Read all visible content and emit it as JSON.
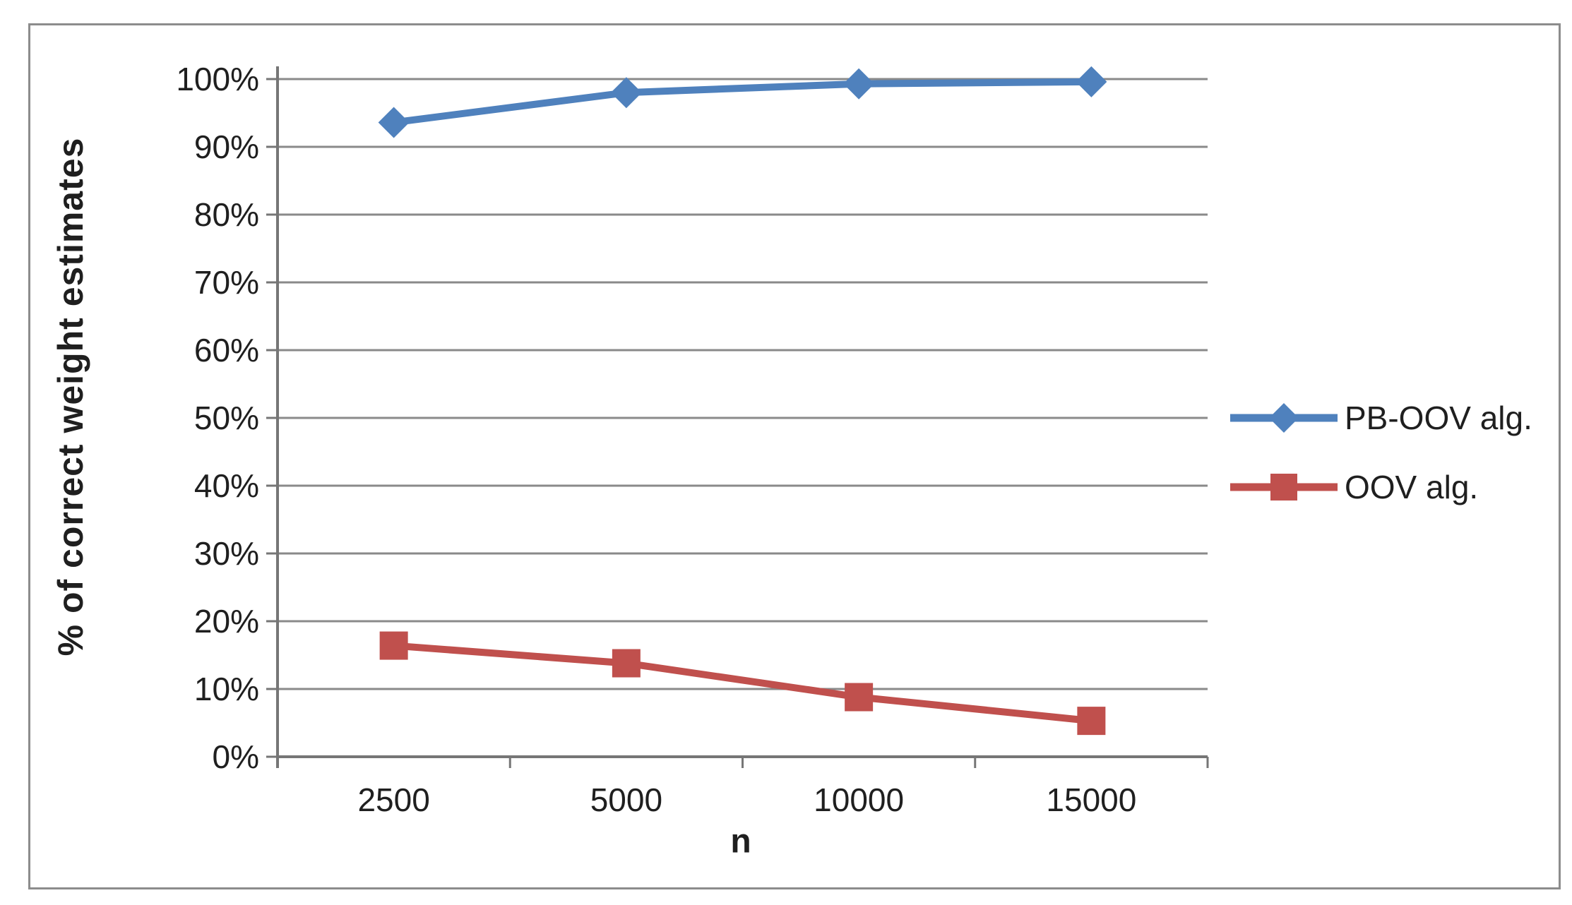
{
  "figure": {
    "background": "#ffffff",
    "border_color": "#8c8c8c"
  },
  "chart_data": {
    "type": "line",
    "title": "",
    "xlabel": "n",
    "ylabel": "% of correct weight estimates",
    "categories": [
      "2500",
      "5000",
      "10000",
      "15000"
    ],
    "series": [
      {
        "name": "PB-OOV alg.",
        "values": [
          93.6,
          98.0,
          99.3,
          99.6
        ],
        "color": "#4f81bd",
        "marker": "diamond"
      },
      {
        "name": "OOV alg.",
        "values": [
          16.4,
          13.8,
          8.8,
          5.3
        ],
        "color": "#c0504d",
        "marker": "square"
      }
    ],
    "y_ticks": [
      "0%",
      "10%",
      "20%",
      "30%",
      "40%",
      "50%",
      "60%",
      "70%",
      "80%",
      "90%",
      "100%"
    ],
    "y_tick_values": [
      0,
      10,
      20,
      30,
      40,
      50,
      60,
      70,
      80,
      90,
      100
    ],
    "ylim": [
      0,
      100
    ],
    "grid": "horizontal",
    "grid_color": "#8a8a8a",
    "axis_color": "#767676",
    "tick_text_color": "#1f1f1f",
    "legend_position": "right"
  },
  "legend": {
    "items": [
      {
        "label": "PB-OOV alg."
      },
      {
        "label": "OOV alg."
      }
    ]
  }
}
